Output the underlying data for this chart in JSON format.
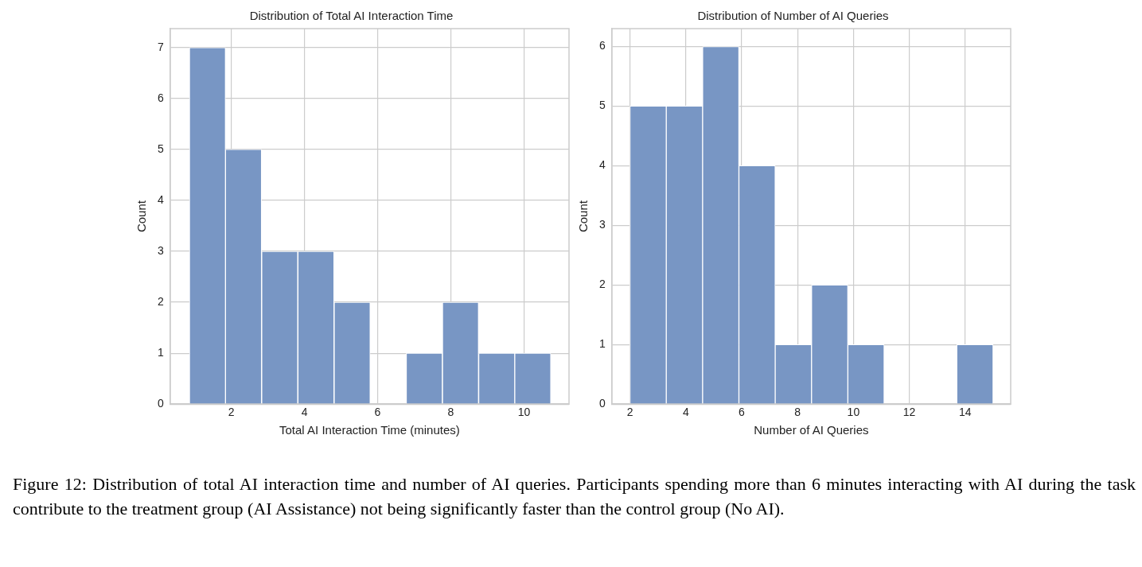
{
  "chart_data": [
    {
      "type": "histogram",
      "title": "Distribution of Total AI Interaction Time",
      "xlabel": "Total AI Interaction Time (minutes)",
      "ylabel": "Count",
      "bins": [
        0.86,
        1.84,
        2.83,
        3.82,
        4.81,
        5.8,
        6.78,
        7.77,
        8.76,
        9.75,
        10.73
      ],
      "values": [
        7,
        5,
        3,
        3,
        2,
        0,
        1,
        2,
        1,
        1
      ],
      "color": "#7896c4",
      "xlim": [
        0.33,
        11.23
      ],
      "xticks": [
        2,
        4,
        6,
        8,
        10
      ],
      "ylim": [
        0,
        7.37
      ],
      "yticks": [
        0,
        1,
        2,
        3,
        4,
        5,
        6,
        7
      ],
      "grid": true,
      "legend": false
    },
    {
      "type": "histogram",
      "title": "Distribution of Number of AI Queries",
      "xlabel": "Number of AI Queries",
      "ylabel": "Count",
      "bins": [
        2,
        3.3,
        4.6,
        5.9,
        7.2,
        8.5,
        9.8,
        11.1,
        12.4,
        13.7,
        15
      ],
      "values": [
        5,
        5,
        6,
        4,
        1,
        2,
        1,
        0,
        0,
        1
      ],
      "color": "#7896c4",
      "xlim": [
        1.35,
        15.63
      ],
      "xticks": [
        2,
        4,
        6,
        8,
        10,
        12,
        14
      ],
      "ylim": [
        0,
        6.3
      ],
      "yticks": [
        0,
        1,
        2,
        3,
        4,
        5,
        6
      ],
      "grid": true,
      "legend": false,
      "annotations": [
        "Figure 12: Distribution of total AI interaction time and number of AI queries. Participants spending more than 6 minutes interacting with AI during the task contribute to the treatment group (AI Assistance) not being significantly faster than the control group (No AI)."
      ]
    }
  ]
}
